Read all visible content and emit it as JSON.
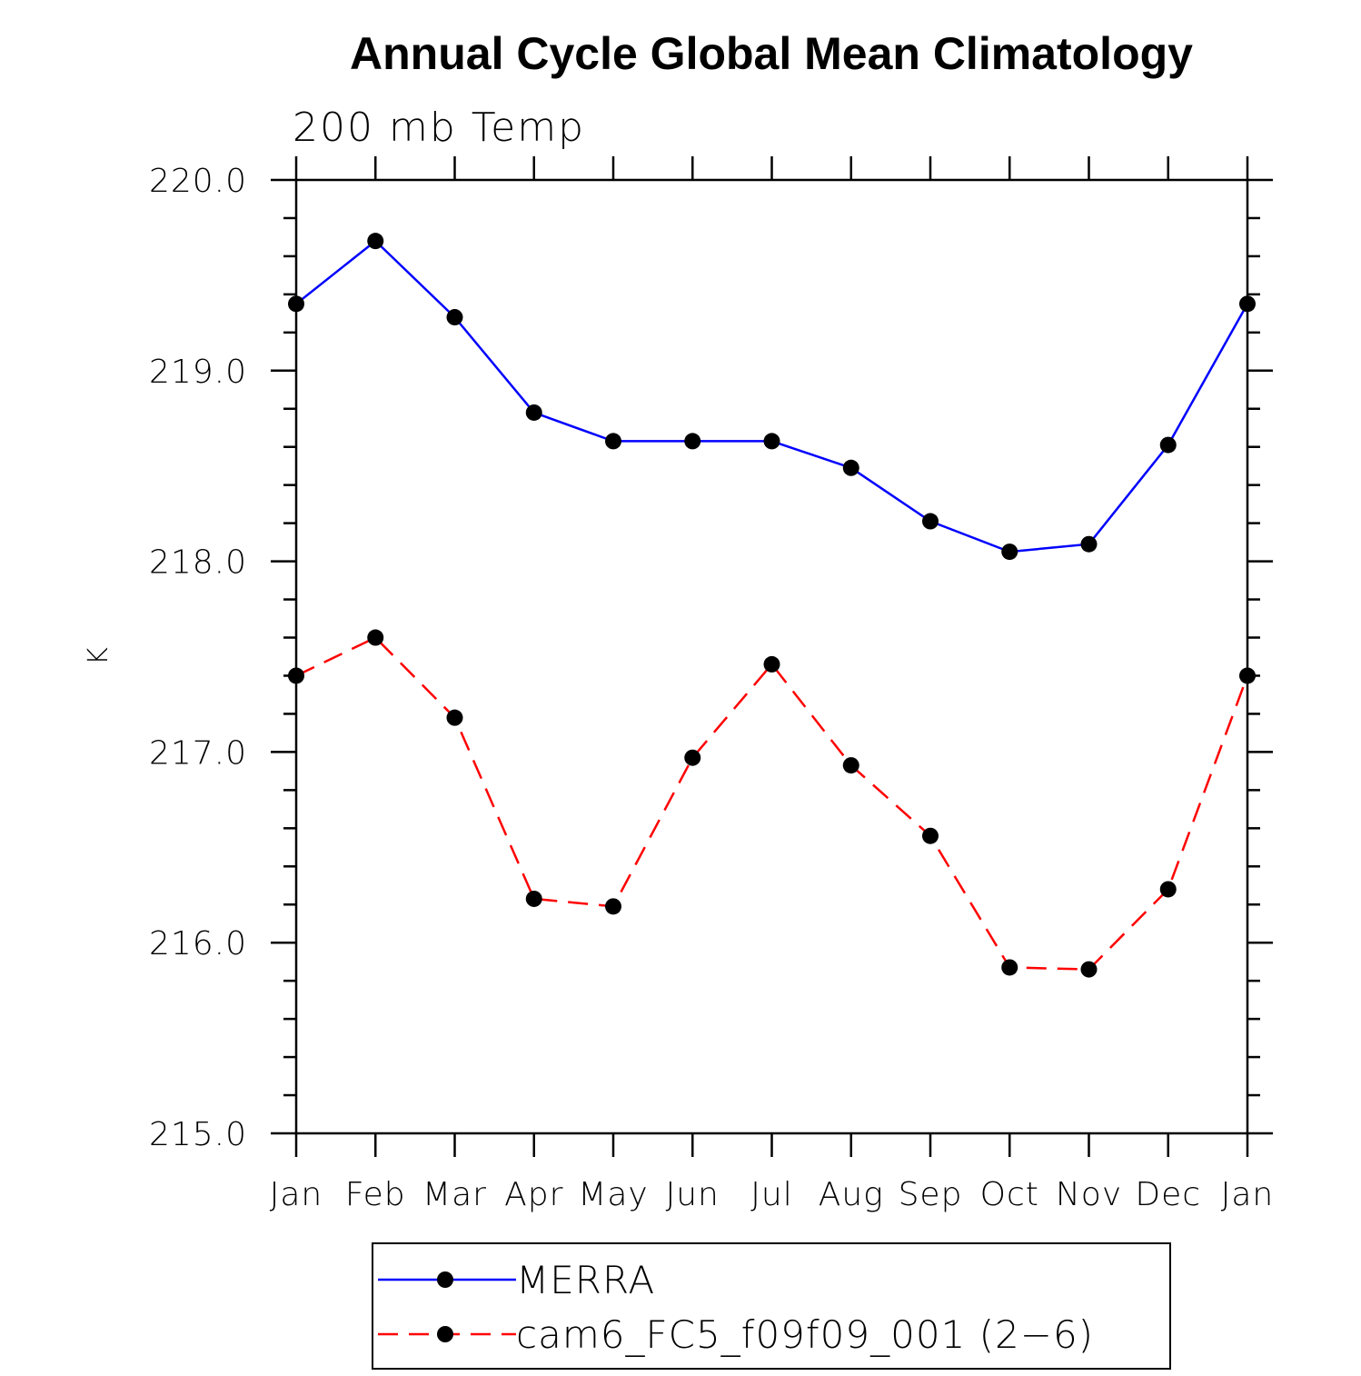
{
  "chart_data": {
    "type": "line",
    "title": "Annual Cycle Global Mean Climatology",
    "subtitle": "200 mb Temp",
    "ylabel": "K",
    "xlabel": "",
    "categories": [
      "Jan",
      "Feb",
      "Mar",
      "Apr",
      "May",
      "Jun",
      "Jul",
      "Aug",
      "Sep",
      "Oct",
      "Nov",
      "Dec",
      "Jan"
    ],
    "ylim": [
      215.0,
      220.0
    ],
    "yticks": [
      "215.0",
      "216.0",
      "217.0",
      "218.0",
      "219.0",
      "220.0"
    ],
    "series": [
      {
        "name": "MERRA",
        "color": "#0000ff",
        "line_style": "solid",
        "values": [
          219.35,
          219.68,
          219.28,
          218.78,
          218.63,
          218.63,
          218.63,
          218.49,
          218.21,
          218.05,
          218.09,
          218.61,
          219.35
        ]
      },
      {
        "name": "cam6_FC5_f09f09_001 (2−6)",
        "color": "#ff0000",
        "line_style": "dashed",
        "values": [
          217.4,
          217.6,
          217.18,
          216.23,
          216.19,
          216.97,
          217.46,
          216.93,
          216.56,
          215.87,
          215.86,
          216.28,
          217.4
        ]
      }
    ],
    "marker_color": "#000000",
    "legend_position": "bottom"
  }
}
